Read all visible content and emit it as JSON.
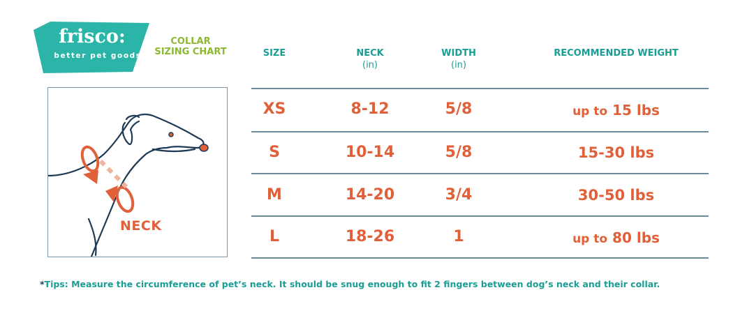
{
  "brand": {
    "name": "frisco:",
    "tagline": "better pet goods",
    "color": "#2bb5a8"
  },
  "title": {
    "line1": "COLLAR",
    "line2": "SIZING CHART",
    "color": "#8cb832"
  },
  "table": {
    "headers": [
      {
        "label": "SIZE",
        "unit": ""
      },
      {
        "label": "NECK",
        "unit": "(in)"
      },
      {
        "label": "WIDTH",
        "unit": "(in)"
      },
      {
        "label": "RECOMMENDED WEIGHT",
        "unit": ""
      }
    ],
    "rows": [
      {
        "size": "XS",
        "neck": "8-12",
        "width": "5/8",
        "weight_prefix": "up to",
        "weight": "15 lbs"
      },
      {
        "size": "S",
        "neck": "10-14",
        "width": "5/8",
        "weight_prefix": "",
        "weight": "15-30 lbs"
      },
      {
        "size": "M",
        "neck": "14-20",
        "width": "3/4",
        "weight_prefix": "",
        "weight": "30-50 lbs"
      },
      {
        "size": "L",
        "neck": "18-26",
        "width": "1",
        "weight_prefix": "up to",
        "weight": "80 lbs"
      }
    ],
    "header_color": "#1a9e94",
    "value_color": "#e0603a"
  },
  "illustration": {
    "label": "NECK",
    "icon": "dog-neck-measurement-illustration"
  },
  "tips": {
    "star": "*",
    "text": "Tips:  Measure the circumference of pet’s neck. It should be snug enough to fit 2 fingers between dog’s neck and their collar."
  }
}
